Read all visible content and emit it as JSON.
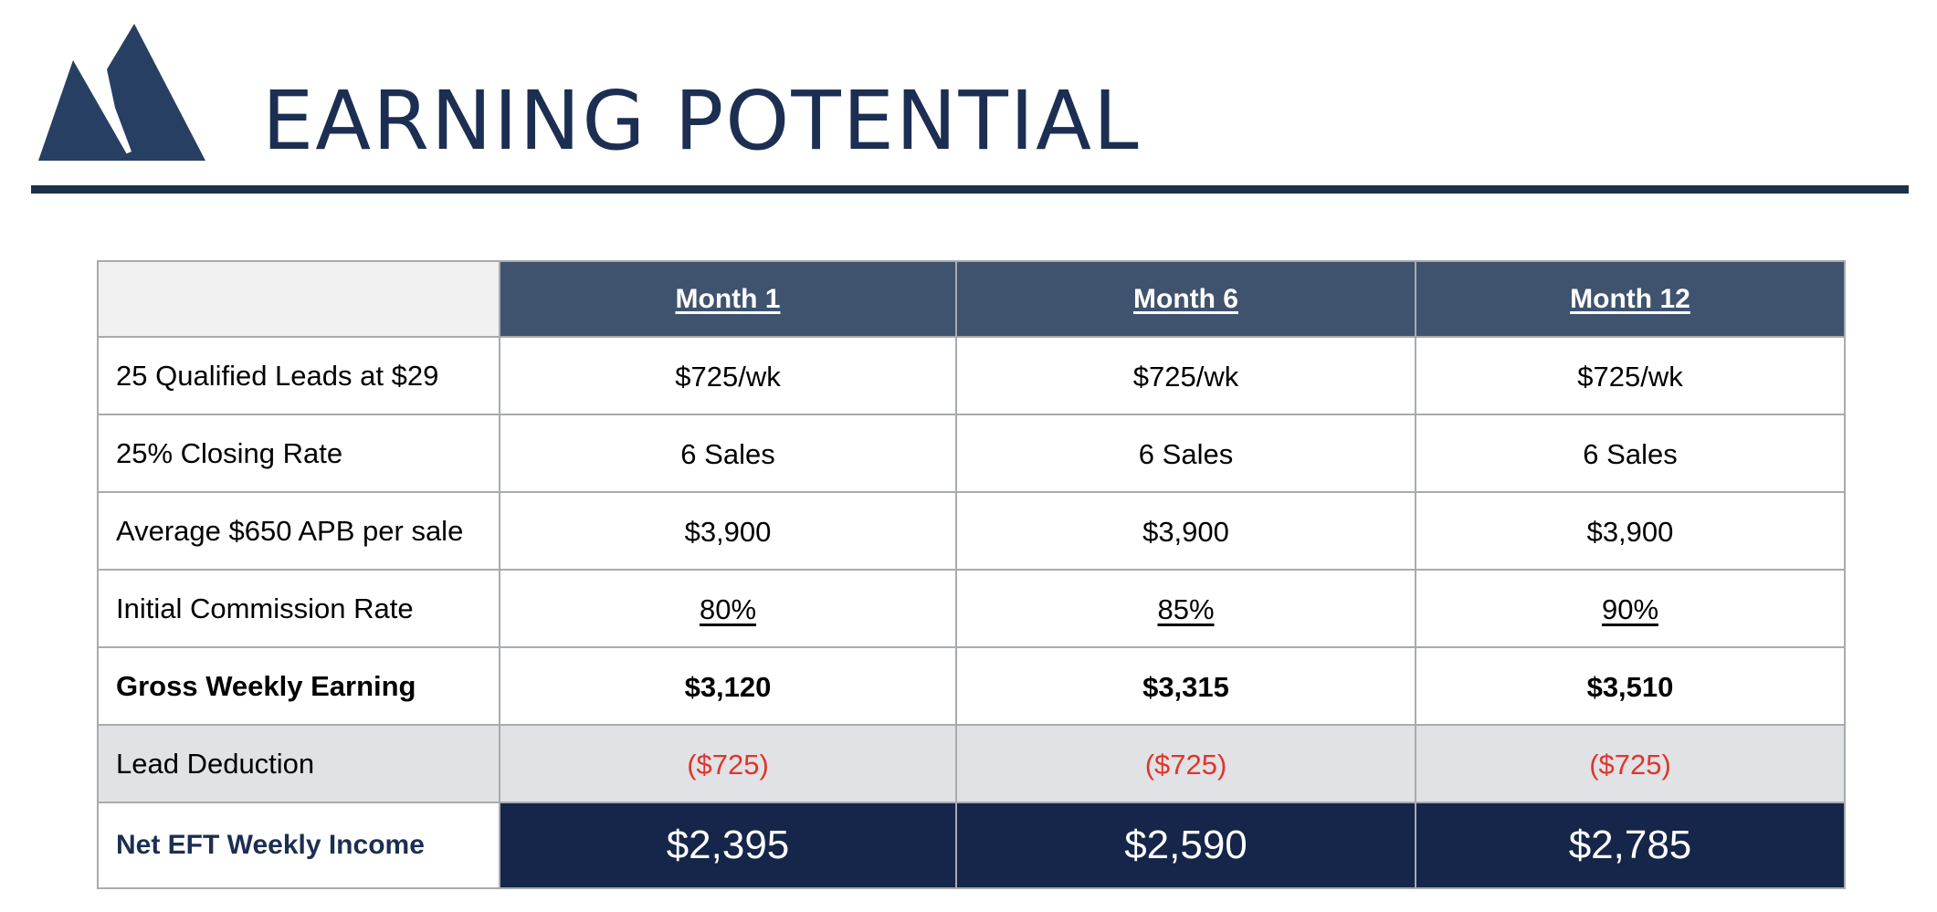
{
  "logo": {
    "icon": "mountain-logo-icon",
    "color": "#273f62"
  },
  "title": "EARNING POTENTIAL",
  "colors": {
    "title": "#1c2f52",
    "rule": "#1a3147",
    "header_bg": "#3f536f",
    "net_bg": "#15264a",
    "deduction_bg": "#e1e2e5",
    "negative": "#e0352b"
  },
  "table": {
    "columns": [
      "Month 1",
      "Month 6",
      "Month 12"
    ],
    "rows": [
      {
        "label": "25 Qualified Leads at $29",
        "values": [
          "$725/wk",
          "$725/wk",
          "$725/wk"
        ]
      },
      {
        "label": "25% Closing Rate",
        "values": [
          "6 Sales",
          "6 Sales",
          "6 Sales"
        ]
      },
      {
        "label": "Average $650 APB per sale",
        "values": [
          "$3,900",
          "$3,900",
          "$3,900"
        ]
      },
      {
        "label": "Initial Commission  Rate",
        "values": [
          "80%",
          "85%",
          "90%"
        ]
      },
      {
        "label": "Gross Weekly Earning",
        "values": [
          "$3,120",
          "$3,315",
          "$3,510"
        ]
      },
      {
        "label": "Lead Deduction",
        "values": [
          "($725)",
          "($725)",
          "($725)"
        ]
      },
      {
        "label": "Net EFT Weekly Income",
        "values": [
          "$2,395",
          "$2,590",
          "$2,785"
        ]
      }
    ]
  }
}
